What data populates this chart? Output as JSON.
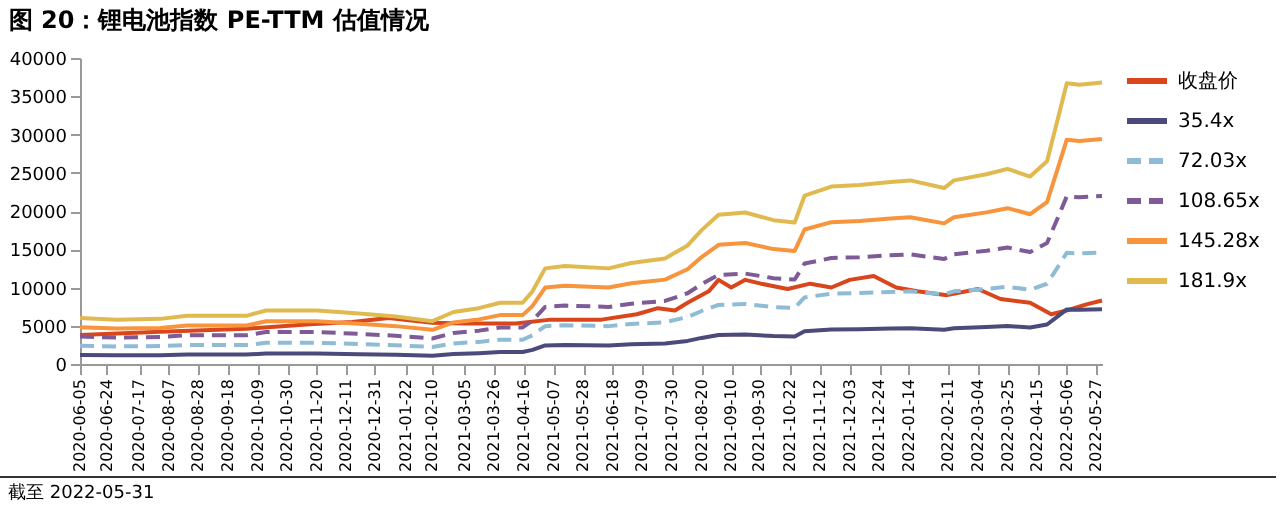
{
  "chart_data": {
    "type": "line",
    "title": "图 20：锂电池指数 PE-TTM 估值情况",
    "annotations": [
      "截至 2022-05-31"
    ],
    "x": [
      "2020-06-05",
      "2020-07-01",
      "2020-08-01",
      "2020-08-20",
      "2020-10-01",
      "2020-10-15",
      "2020-11-20",
      "2020-12-20",
      "2021-01-15",
      "2021-02-10",
      "2021-02-25",
      "2021-03-15",
      "2021-03-30",
      "2021-04-15",
      "2021-04-22",
      "2021-05-01",
      "2021-05-15",
      "2021-06-15",
      "2021-07-01",
      "2021-07-25",
      "2021-08-10",
      "2021-08-20",
      "2021-09-01",
      "2021-09-20",
      "2021-10-10",
      "2021-10-25",
      "2021-11-01",
      "2021-11-20",
      "2021-12-10",
      "2022-01-01",
      "2022-01-15",
      "2022-02-08",
      "2022-02-15",
      "2022-03-10",
      "2022-03-25",
      "2022-04-10",
      "2022-04-22",
      "2022-05-01",
      "2022-05-06",
      "2022-05-15",
      "2022-05-31"
    ],
    "series": [
      {
        "name": "收盘价",
        "color": "#d9461c",
        "line_style": "solid",
        "x": [
          "2020-06-05",
          "2020-08-01",
          "2020-10-01",
          "2020-11-15",
          "2020-12-15",
          "2021-01-10",
          "2021-02-10",
          "2021-03-05",
          "2021-04-10",
          "2021-05-05",
          "2021-06-10",
          "2021-07-05",
          "2021-07-20",
          "2021-08-01",
          "2021-08-10",
          "2021-08-25",
          "2021-09-01",
          "2021-09-10",
          "2021-09-20",
          "2021-10-01",
          "2021-10-20",
          "2021-11-05",
          "2021-11-20",
          "2021-12-03",
          "2021-12-20",
          "2022-01-05",
          "2022-01-20",
          "2022-02-10",
          "2022-03-04",
          "2022-03-20",
          "2022-04-10",
          "2022-04-25",
          "2022-05-06",
          "2022-05-20",
          "2022-05-31"
        ],
        "values": [
          3800,
          4200,
          4600,
          5200,
          5500,
          6000,
          5400,
          5300,
          5300,
          5800,
          5800,
          6500,
          7300,
          7000,
          8000,
          9500,
          11000,
          10000,
          11000,
          10500,
          9800,
          10500,
          10000,
          11000,
          11500,
          10000,
          9500,
          9000,
          9800,
          8500,
          8000,
          6500,
          7000,
          7800,
          8300
        ]
      },
      {
        "name": "35.4x",
        "color": "#4b4a7a",
        "line_style": "solid",
        "values": [
          1170,
          1130,
          1150,
          1230,
          1230,
          1360,
          1360,
          1280,
          1210,
          1090,
          1320,
          1420,
          1560,
          1560,
          1850,
          2430,
          2490,
          2430,
          2570,
          2690,
          3020,
          3410,
          3790,
          3850,
          3660,
          3600,
          4280,
          4510,
          4550,
          4630,
          4670,
          4480,
          4670,
          4830,
          4960,
          4770,
          5160,
          6420,
          7140,
          7100,
          7160
        ]
      },
      {
        "name": "72.03x",
        "color": "#8fbcd4",
        "line_style": "dashed",
        "values": [
          2380,
          2300,
          2340,
          2490,
          2490,
          2770,
          2770,
          2610,
          2460,
          2220,
          2690,
          2890,
          3170,
          3170,
          3760,
          4950,
          5070,
          4950,
          5230,
          5460,
          6140,
          6930,
          7720,
          7840,
          7440,
          7330,
          8710,
          9190,
          9270,
          9420,
          9500,
          9110,
          9500,
          9820,
          10100,
          9700,
          10490,
          13070,
          14530,
          14450,
          14570
        ]
      },
      {
        "name": "108.65x",
        "color": "#7e5a96",
        "line_style": "dashed",
        "values": [
          3580,
          3460,
          3520,
          3760,
          3760,
          4180,
          4180,
          3940,
          3700,
          3340,
          4060,
          4360,
          4780,
          4780,
          5670,
          7460,
          7640,
          7460,
          7880,
          8240,
          9250,
          10450,
          11640,
          11820,
          11220,
          11040,
          13130,
          13850,
          13970,
          14210,
          14330,
          13730,
          14330,
          14810,
          15220,
          14630,
          15820,
          19700,
          21910,
          21790,
          21970
        ]
      },
      {
        "name": "145.28x",
        "color": "#f7943c",
        "line_style": "solid",
        "values": [
          4790,
          4630,
          4710,
          5030,
          5030,
          5590,
          5590,
          5270,
          4950,
          4470,
          5430,
          5830,
          6390,
          6390,
          7590,
          9990,
          10230,
          9990,
          10550,
          11030,
          12380,
          13980,
          15580,
          15820,
          15020,
          14780,
          17580,
          18540,
          18700,
          19020,
          19180,
          18380,
          19180,
          19820,
          20370,
          19580,
          21170,
          26370,
          29320,
          29160,
          29400
        ]
      },
      {
        "name": "181.9x",
        "color": "#e0b94f",
        "line_style": "solid",
        "values": [
          6000,
          5800,
          5900,
          6300,
          6300,
          7000,
          7000,
          6600,
          6200,
          5600,
          6800,
          7300,
          8000,
          8000,
          9500,
          12500,
          12800,
          12500,
          13200,
          13800,
          15500,
          17500,
          19500,
          19800,
          18800,
          18500,
          22000,
          23200,
          23400,
          23800,
          24000,
          23000,
          24000,
          24800,
          25500,
          24500,
          26500,
          33000,
          36700,
          36500,
          36800
        ]
      }
    ],
    "xlim": [
      "2020-06-05",
      "2022-05-31"
    ],
    "xticks": [
      "2020-06-05",
      "2020-06-24",
      "2020-07-17",
      "2020-08-07",
      "2020-08-28",
      "2020-09-18",
      "2020-10-09",
      "2020-10-30",
      "2020-11-20",
      "2020-12-11",
      "2020-12-31",
      "2021-01-22",
      "2021-02-10",
      "2021-03-05",
      "2021-03-26",
      "2021-04-16",
      "2021-05-07",
      "2021-05-28",
      "2021-06-18",
      "2021-07-09",
      "2021-07-30",
      "2021-08-20",
      "2021-09-10",
      "2021-09-30",
      "2021-10-22",
      "2021-11-12",
      "2021-12-03",
      "2021-12-24",
      "2022-01-14",
      "2022-02-11",
      "2022-03-04",
      "2022-03-25",
      "2022-04-15",
      "2022-05-06",
      "2022-05-27"
    ],
    "ylim": [
      0,
      40000
    ],
    "yticks": [
      0,
      5000,
      10000,
      15000,
      20000,
      25000,
      30000,
      35000,
      40000
    ],
    "grid": false,
    "legend": "right"
  }
}
